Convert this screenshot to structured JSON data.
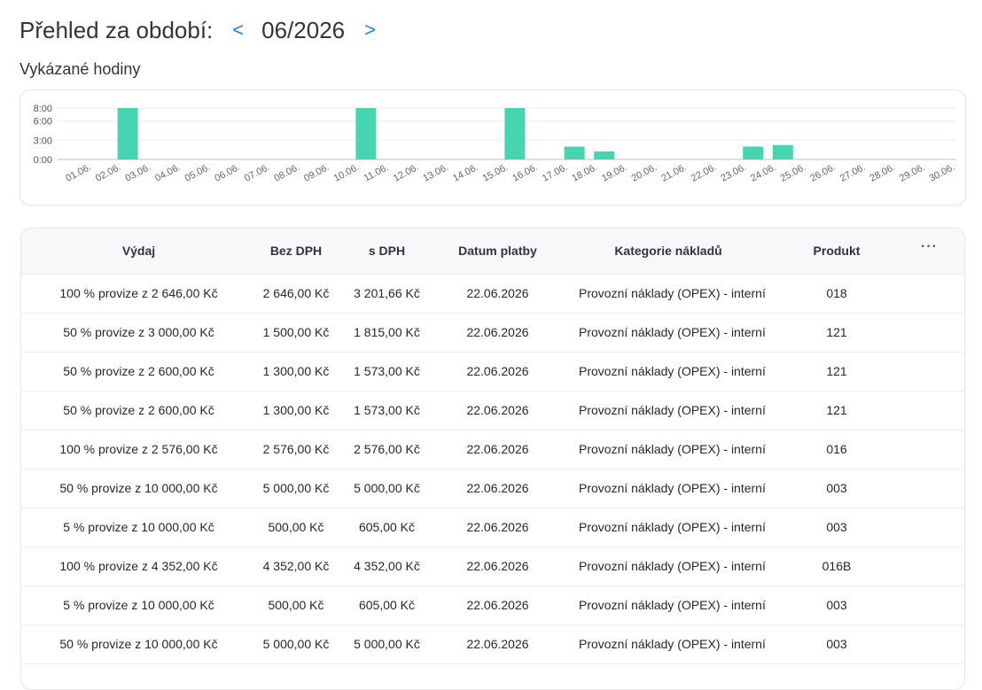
{
  "header": {
    "title": "Přehled za období:",
    "prev_label": "<",
    "period": "06/2026",
    "next_label": ">"
  },
  "hours_section": {
    "title": "Vykázané hodiny"
  },
  "chart_data": {
    "type": "bar",
    "categories": [
      "01.06.",
      "02.06.",
      "03.06.",
      "04.06.",
      "05.06.",
      "06.06.",
      "07.06.",
      "08.06.",
      "09.06.",
      "10.06.",
      "11.06.",
      "12.06.",
      "13.06.",
      "14.06.",
      "15.06.",
      "16.06.",
      "17.06.",
      "18.06.",
      "19.06.",
      "20.06.",
      "21.06.",
      "22.06.",
      "23.06.",
      "24.06.",
      "25.06.",
      "26.06.",
      "27.06.",
      "28.06.",
      "29.06.",
      "30.06."
    ],
    "values": [
      0,
      8,
      0,
      0,
      0,
      0,
      0,
      0,
      0,
      8,
      0,
      0,
      0,
      0,
      8,
      0,
      2,
      1.25,
      0,
      0,
      0,
      0,
      2,
      2.25,
      0,
      0,
      0,
      0,
      0,
      0
    ],
    "yticks": [
      "0:00",
      "3:00",
      "6:00",
      "8:00"
    ],
    "ytick_values": [
      0,
      3,
      6,
      8
    ],
    "ylim": [
      0,
      8
    ],
    "bar_color": "#47d4b1",
    "grid": true
  },
  "table": {
    "columns": {
      "vydaj": "Výdaj",
      "bez_dph": "Bez DPH",
      "s_dph": "s DPH",
      "datum": "Datum platby",
      "kategorie": "Kategorie nákladů",
      "produkt": "Produkt",
      "more": "···"
    },
    "rows": [
      {
        "vydaj": "100 % provize z 2 646,00 Kč",
        "bez_dph": "2 646,00 Kč",
        "s_dph": "3 201,66 Kč",
        "datum": "22.06.2026",
        "kategorie": "Provozní náklady (OPEX) - interní",
        "produkt": "018"
      },
      {
        "vydaj": "50 % provize z 3 000,00 Kč",
        "bez_dph": "1 500,00 Kč",
        "s_dph": "1 815,00 Kč",
        "datum": "22.06.2026",
        "kategorie": "Provozní náklady (OPEX) - interní",
        "produkt": "121"
      },
      {
        "vydaj": "50 % provize z 2 600,00 Kč",
        "bez_dph": "1 300,00 Kč",
        "s_dph": "1 573,00 Kč",
        "datum": "22.06.2026",
        "kategorie": "Provozní náklady (OPEX) - interní",
        "produkt": "121"
      },
      {
        "vydaj": "50 % provize z 2 600,00 Kč",
        "bez_dph": "1 300,00 Kč",
        "s_dph": "1 573,00 Kč",
        "datum": "22.06.2026",
        "kategorie": "Provozní náklady (OPEX) - interní",
        "produkt": "121"
      },
      {
        "vydaj": "100 % provize z 2 576,00 Kč",
        "bez_dph": "2 576,00 Kč",
        "s_dph": "2 576,00 Kč",
        "datum": "22.06.2026",
        "kategorie": "Provozní náklady (OPEX) - interní",
        "produkt": "016"
      },
      {
        "vydaj": "50 % provize z 10 000,00 Kč",
        "bez_dph": "5 000,00 Kč",
        "s_dph": "5 000,00 Kč",
        "datum": "22.06.2026",
        "kategorie": "Provozní náklady (OPEX) - interní",
        "produkt": "003"
      },
      {
        "vydaj": "5 % provize z 10 000,00 Kč",
        "bez_dph": "500,00 Kč",
        "s_dph": "605,00 Kč",
        "datum": "22.06.2026",
        "kategorie": "Provozní náklady (OPEX) - interní",
        "produkt": "003"
      },
      {
        "vydaj": "100 % provize z 4 352,00 Kč",
        "bez_dph": "4 352,00 Kč",
        "s_dph": "4 352,00 Kč",
        "datum": "22.06.2026",
        "kategorie": "Provozní náklady (OPEX) - interní",
        "produkt": "016B"
      },
      {
        "vydaj": "5 % provize z 10 000,00 Kč",
        "bez_dph": "500,00 Kč",
        "s_dph": "605,00 Kč",
        "datum": "22.06.2026",
        "kategorie": "Provozní náklady (OPEX) - interní",
        "produkt": "003"
      },
      {
        "vydaj": "50 % provize z 10 000,00 Kč",
        "bez_dph": "5 000,00 Kč",
        "s_dph": "5 000,00 Kč",
        "datum": "22.06.2026",
        "kategorie": "Provozní náklady (OPEX) - interní",
        "produkt": "003"
      }
    ]
  }
}
